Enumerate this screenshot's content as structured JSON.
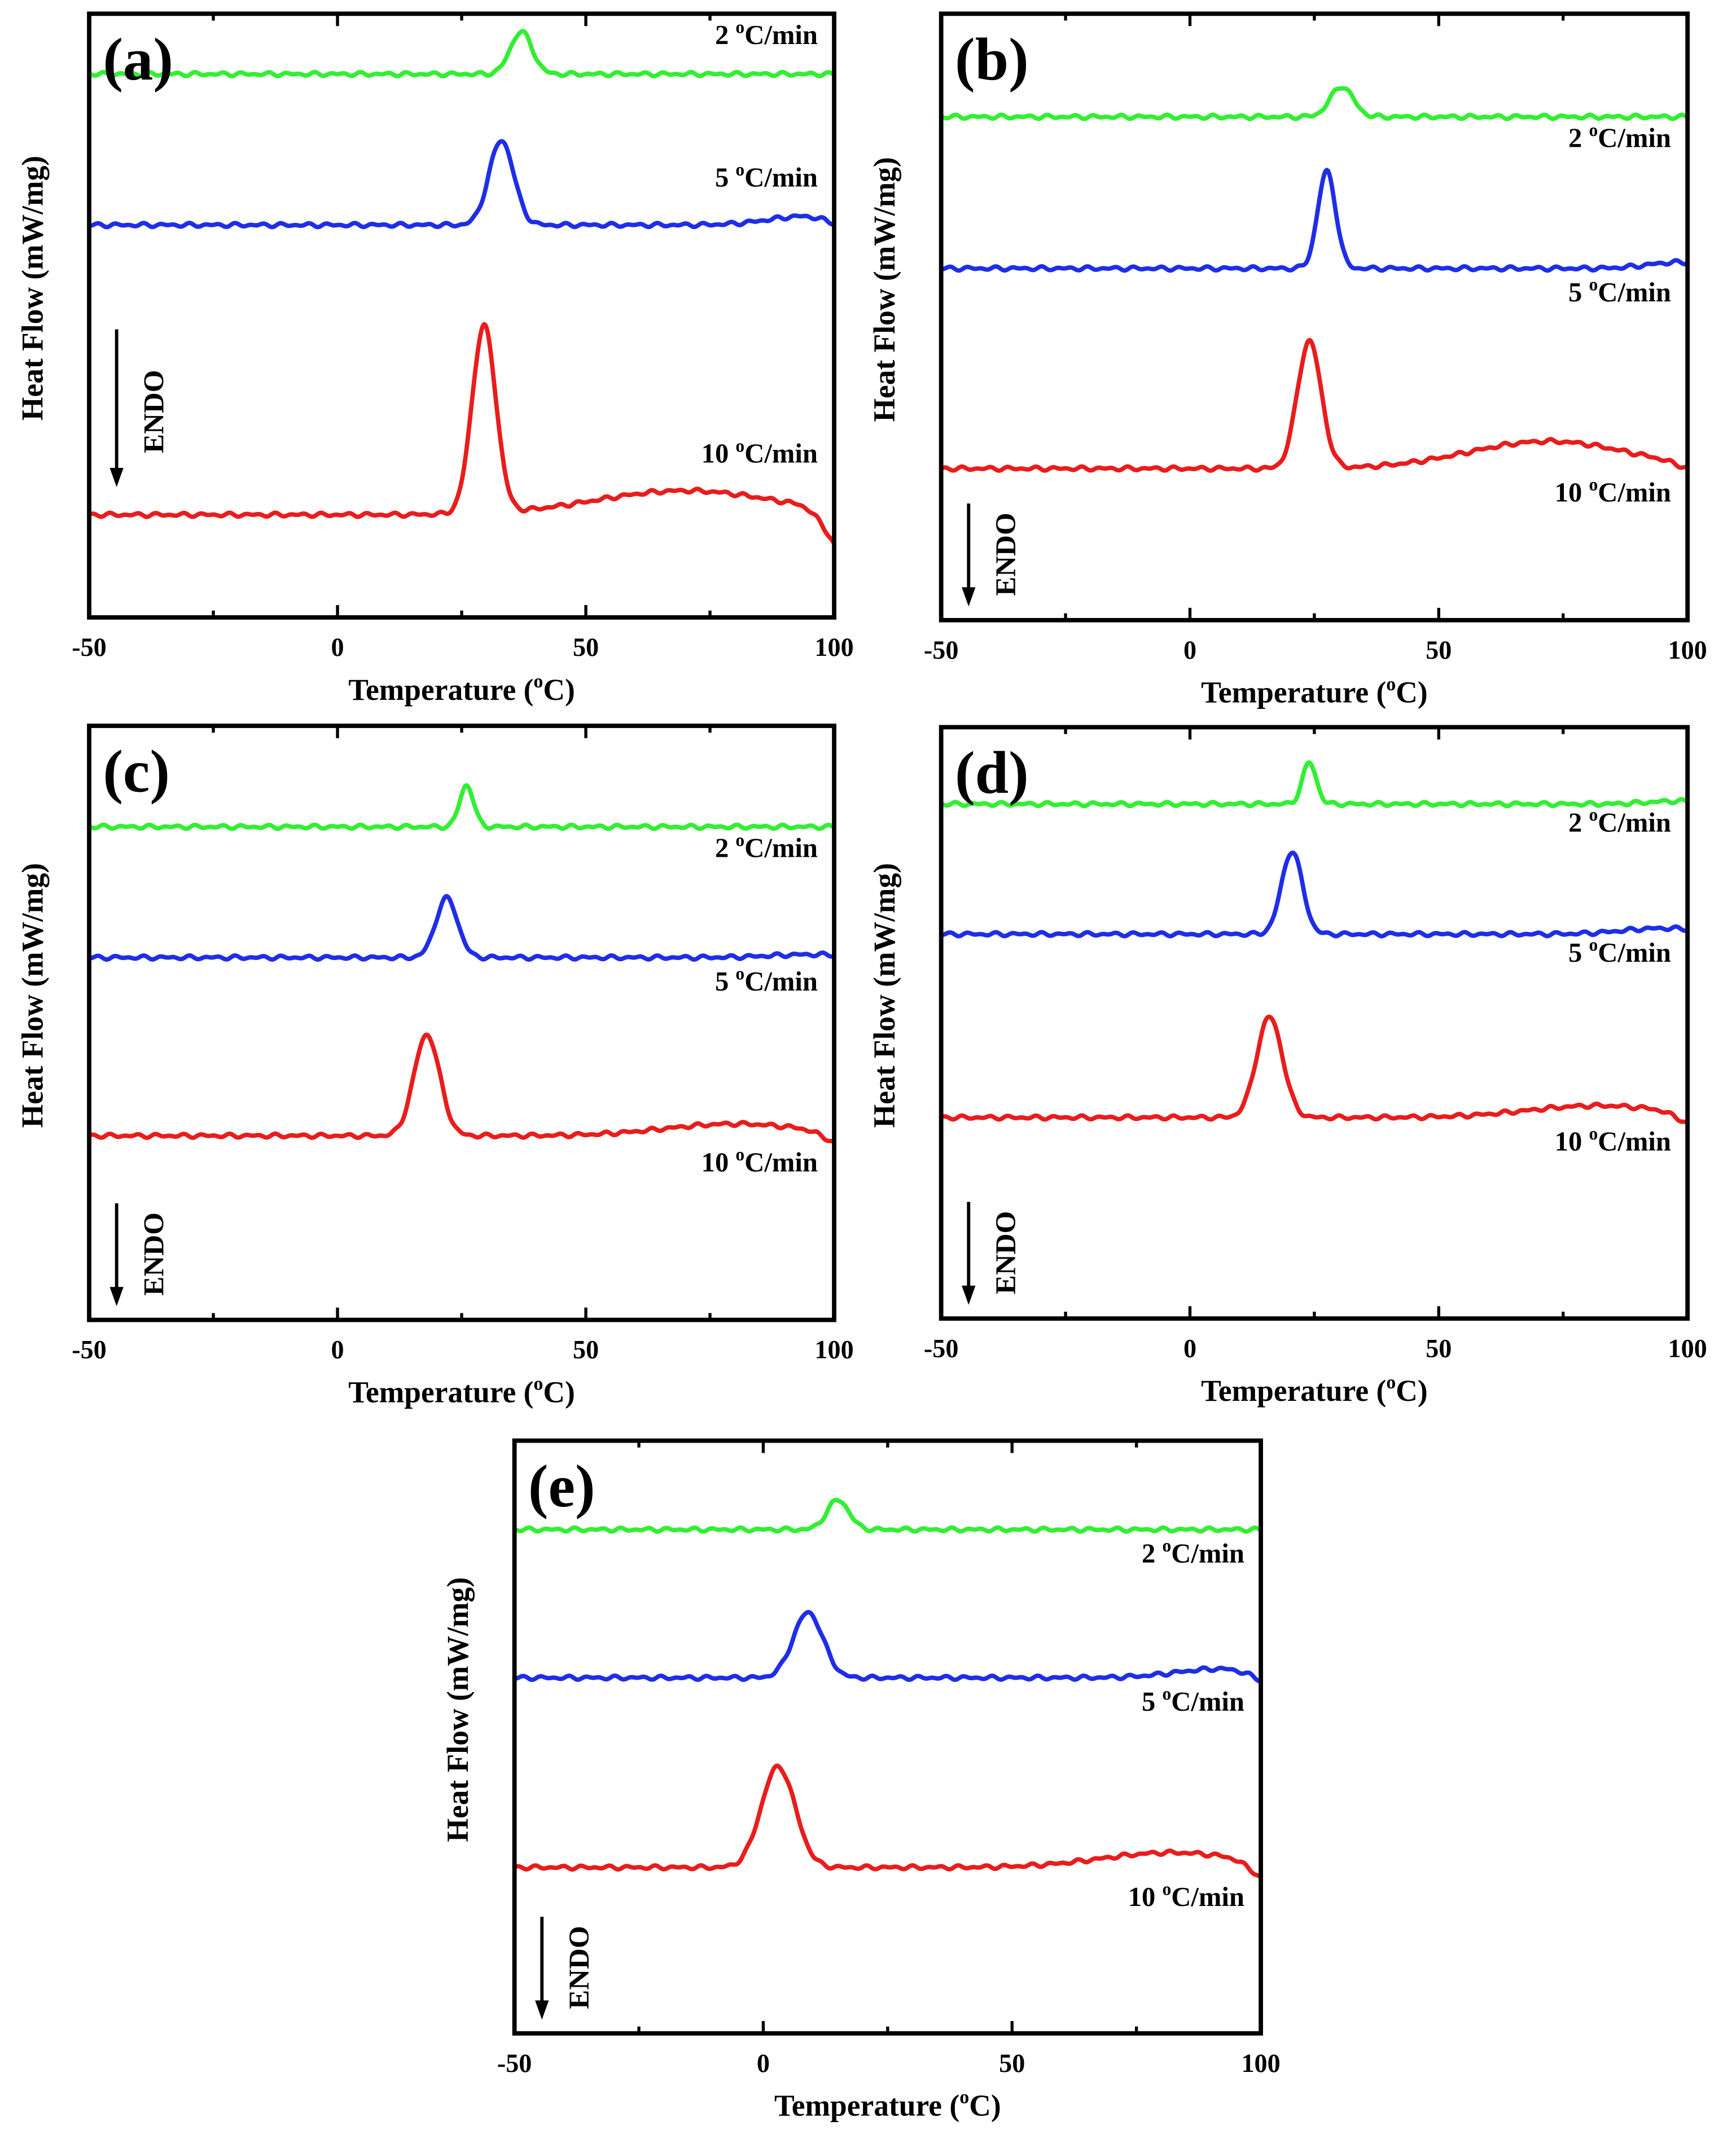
{
  "chart_data": [
    {
      "type": "line",
      "panel_label": "(a)",
      "xlabel": "Temperature (°C)",
      "ylabel": "Heat Flow (mW/mg)",
      "xlim": [
        -50,
        100
      ],
      "ylim": [
        0,
        100
      ],
      "xticks": [
        -50,
        0,
        50,
        100
      ],
      "endo_label": "ENDO",
      "series": [
        {
          "name": "2 °C/min",
          "color": "#33ee33",
          "baseline": 90,
          "peak_x": 37,
          "peak_height": 7,
          "peak_width": 2.2,
          "hump_height": 0,
          "hump_x": 75,
          "hump_width": 15,
          "end_drop": 0
        },
        {
          "name": "5 °C/min",
          "color": "#1f2ee6",
          "baseline": 65,
          "peak_x": 33,
          "peak_height": 14,
          "peak_width": 2.5,
          "hump_height": 1.5,
          "hump_x": 95,
          "hump_width": 8,
          "end_drop": 1
        },
        {
          "name": "10 °C/min",
          "color": "#e81d1d",
          "baseline": 17,
          "peak_x": 29.5,
          "peak_height": 31,
          "peak_width": 2.4,
          "hump_height": 4,
          "hump_x": 70,
          "hump_width": 18,
          "end_drop": 6
        }
      ]
    },
    {
      "type": "line",
      "panel_label": "(b)",
      "xlabel": "Temperature (°C)",
      "ylabel": "Heat Flow (mW/mg)",
      "xlim": [
        -50,
        100
      ],
      "ylim": [
        0,
        100
      ],
      "xticks": [
        -50,
        0,
        50,
        100
      ],
      "endo_label": "ENDO",
      "series": [
        {
          "name": "2 °C/min",
          "color": "#33ee33",
          "baseline": 83,
          "peak_x": 30.5,
          "peak_height": 5,
          "peak_width": 2.3,
          "hump_height": 0,
          "hump_x": 75,
          "hump_width": 15,
          "end_drop": 0
        },
        {
          "name": "5 °C/min",
          "color": "#1f2ee6",
          "baseline": 58,
          "peak_x": 27.5,
          "peak_height": 16,
          "peak_width": 1.8,
          "hump_height": 1,
          "hump_x": 98,
          "hump_width": 6,
          "end_drop": 0
        },
        {
          "name": "10 °C/min",
          "color": "#e81d1d",
          "baseline": 25,
          "peak_x": 24,
          "peak_height": 21,
          "peak_width": 2.4,
          "hump_height": 4.5,
          "hump_x": 72,
          "hump_width": 16,
          "end_drop": 1
        }
      ]
    },
    {
      "type": "line",
      "panel_label": "(c)",
      "xlabel": "Temperature (°C)",
      "ylabel": "Heat Flow (mW/mg)",
      "xlim": [
        -50,
        100
      ],
      "ylim": [
        0,
        100
      ],
      "xticks": [
        -50,
        0,
        50,
        100
      ],
      "endo_label": "ENDO",
      "series": [
        {
          "name": "2 °C/min",
          "color": "#33ee33",
          "baseline": 83,
          "peak_x": 26,
          "peak_height": 7,
          "peak_width": 1.4,
          "hump_height": 0,
          "hump_x": 75,
          "hump_width": 15,
          "end_drop": 0
        },
        {
          "name": "5 °C/min",
          "color": "#1f2ee6",
          "baseline": 61,
          "peak_x": 22,
          "peak_height": 10,
          "peak_width": 2.2,
          "hump_height": 0.5,
          "hump_x": 95,
          "hump_width": 8,
          "end_drop": 0
        },
        {
          "name": "10 °C/min",
          "color": "#e81d1d",
          "baseline": 31,
          "peak_x": 18,
          "peak_height": 17,
          "peak_width": 2.6,
          "hump_height": 2,
          "hump_x": 80,
          "hump_width": 14,
          "end_drop": 2
        }
      ]
    },
    {
      "type": "line",
      "panel_label": "(d)",
      "xlabel": "Temperature (°C)",
      "ylabel": "Heat Flow (mW/mg)",
      "xlim": [
        -50,
        100
      ],
      "ylim": [
        0,
        100
      ],
      "xticks": [
        -50,
        0,
        50,
        100
      ],
      "endo_label": "ENDO",
      "series": [
        {
          "name": "2 °C/min",
          "color": "#33ee33",
          "baseline": 87,
          "peak_x": 24,
          "peak_height": 7,
          "peak_width": 1.4,
          "hump_height": 0.5,
          "hump_x": 98,
          "hump_width": 6,
          "end_drop": 0
        },
        {
          "name": "5 °C/min",
          "color": "#1f2ee6",
          "baseline": 65,
          "peak_x": 20.5,
          "peak_height": 14,
          "peak_width": 2.1,
          "hump_height": 1,
          "hump_x": 95,
          "hump_width": 8,
          "end_drop": 0
        },
        {
          "name": "10 °C/min",
          "color": "#e81d1d",
          "baseline": 34,
          "peak_x": 16,
          "peak_height": 17,
          "peak_width": 2.6,
          "hump_height": 2,
          "hump_x": 82,
          "hump_width": 14,
          "end_drop": 2
        }
      ]
    },
    {
      "type": "line",
      "panel_label": "(e)",
      "xlabel": "Temperature (°C)",
      "ylabel": "Heat Flow (mW/mg)",
      "xlim": [
        -50,
        100
      ],
      "ylim": [
        0,
        100
      ],
      "xticks": [
        -50,
        0,
        50,
        100
      ],
      "endo_label": "ENDO",
      "series": [
        {
          "name": "2 °C/min",
          "color": "#33ee33",
          "baseline": 85,
          "peak_x": 15,
          "peak_height": 5,
          "peak_width": 2.2,
          "hump_height": 0,
          "hump_x": 75,
          "hump_width": 15,
          "end_drop": 0
        },
        {
          "name": "5 °C/min",
          "color": "#1f2ee6",
          "baseline": 60,
          "peak_x": 9,
          "peak_height": 11,
          "peak_width": 3,
          "hump_height": 1.5,
          "hump_x": 92,
          "hump_width": 9,
          "end_drop": 1.5
        },
        {
          "name": "10 °C/min",
          "color": "#e81d1d",
          "baseline": 28,
          "peak_x": 3,
          "peak_height": 17,
          "peak_width": 3.4,
          "hump_height": 2.5,
          "hump_x": 82,
          "hump_width": 14,
          "end_drop": 3
        }
      ]
    }
  ]
}
